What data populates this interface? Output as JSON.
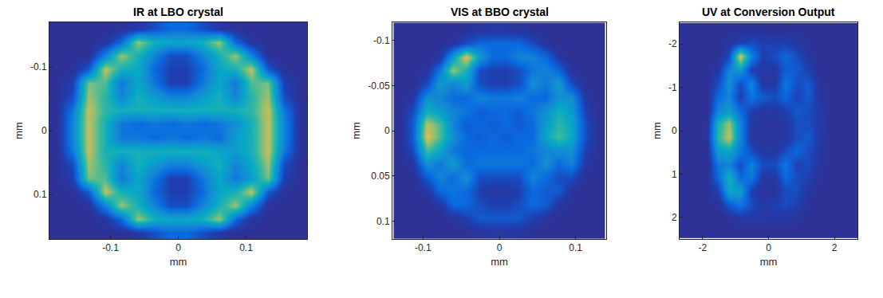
{
  "chart_data": [
    {
      "type": "heatmap",
      "title": "IR at LBO crystal",
      "xlabel": "mm",
      "ylabel": "mm",
      "x": [
        -0.18,
        -0.156,
        -0.132,
        -0.108,
        -0.084,
        -0.06,
        -0.036,
        -0.012,
        0.012,
        0.036,
        0.06,
        0.084,
        0.108,
        0.132,
        0.156,
        0.18
      ],
      "y": [
        -0.16,
        -0.139,
        -0.117,
        -0.096,
        -0.075,
        -0.053,
        -0.032,
        -0.011,
        0.011,
        0.032,
        0.053,
        0.075,
        0.096,
        0.117,
        0.139,
        0.16
      ],
      "z": [
        [
          0.05,
          0.05,
          0.05,
          0.05,
          0.06,
          0.1,
          0.2,
          0.3,
          0.3,
          0.2,
          0.1,
          0.06,
          0.05,
          0.05,
          0.05,
          0.05
        ],
        [
          0.05,
          0.05,
          0.05,
          0.08,
          0.3,
          0.8,
          0.6,
          0.55,
          0.55,
          0.6,
          0.8,
          0.3,
          0.08,
          0.05,
          0.05,
          0.05
        ],
        [
          0.05,
          0.05,
          0.06,
          0.4,
          0.8,
          0.6,
          0.4,
          0.2,
          0.2,
          0.4,
          0.6,
          0.8,
          0.4,
          0.06,
          0.05,
          0.05
        ],
        [
          0.05,
          0.06,
          0.25,
          0.85,
          0.6,
          0.55,
          0.3,
          0.15,
          0.15,
          0.3,
          0.55,
          0.6,
          0.85,
          0.25,
          0.06,
          0.05
        ],
        [
          0.05,
          0.15,
          0.75,
          0.7,
          0.35,
          0.55,
          0.35,
          0.15,
          0.15,
          0.35,
          0.55,
          0.35,
          0.7,
          0.75,
          0.15,
          0.05
        ],
        [
          0.05,
          0.2,
          0.8,
          0.65,
          0.4,
          0.6,
          0.5,
          0.4,
          0.4,
          0.5,
          0.6,
          0.4,
          0.65,
          0.8,
          0.2,
          0.05
        ],
        [
          0.06,
          0.35,
          0.85,
          0.65,
          0.6,
          0.6,
          0.6,
          0.6,
          0.6,
          0.6,
          0.6,
          0.6,
          0.65,
          0.85,
          0.35,
          0.06
        ],
        [
          0.06,
          0.4,
          0.85,
          0.6,
          0.35,
          0.3,
          0.35,
          0.3,
          0.35,
          0.3,
          0.35,
          0.45,
          0.6,
          0.85,
          0.4,
          0.06
        ],
        [
          0.06,
          0.4,
          0.85,
          0.6,
          0.35,
          0.35,
          0.3,
          0.35,
          0.3,
          0.35,
          0.3,
          0.5,
          0.6,
          0.85,
          0.4,
          0.06
        ],
        [
          0.06,
          0.35,
          0.85,
          0.6,
          0.6,
          0.6,
          0.6,
          0.6,
          0.6,
          0.6,
          0.55,
          0.5,
          0.6,
          0.85,
          0.35,
          0.06
        ],
        [
          0.05,
          0.2,
          0.8,
          0.65,
          0.4,
          0.6,
          0.5,
          0.4,
          0.4,
          0.5,
          0.6,
          0.4,
          0.55,
          0.8,
          0.2,
          0.05
        ],
        [
          0.05,
          0.15,
          0.75,
          0.7,
          0.35,
          0.55,
          0.35,
          0.15,
          0.15,
          0.35,
          0.55,
          0.35,
          0.5,
          0.75,
          0.15,
          0.05
        ],
        [
          0.05,
          0.06,
          0.25,
          0.85,
          0.6,
          0.55,
          0.3,
          0.15,
          0.15,
          0.3,
          0.55,
          0.6,
          0.85,
          0.25,
          0.06,
          0.05
        ],
        [
          0.05,
          0.05,
          0.06,
          0.4,
          0.8,
          0.6,
          0.4,
          0.2,
          0.2,
          0.4,
          0.6,
          0.8,
          0.4,
          0.06,
          0.05,
          0.05
        ],
        [
          0.05,
          0.05,
          0.05,
          0.08,
          0.3,
          0.8,
          0.6,
          0.55,
          0.55,
          0.6,
          0.8,
          0.3,
          0.08,
          0.05,
          0.05,
          0.05
        ],
        [
          0.05,
          0.05,
          0.05,
          0.05,
          0.06,
          0.1,
          0.2,
          0.3,
          0.3,
          0.2,
          0.1,
          0.06,
          0.05,
          0.05,
          0.05,
          0.05
        ]
      ],
      "zlim": [
        0,
        1
      ],
      "xlim": [
        -0.19,
        0.19
      ],
      "xticks": [
        -0.1,
        0,
        0.1
      ],
      "ylim": [
        0.17,
        -0.17
      ],
      "yticks": [
        -0.1,
        0,
        0.1
      ]
    },
    {
      "type": "heatmap",
      "title": "VIS at BBO crystal",
      "xlabel": "mm",
      "ylabel": "mm",
      "x": [
        -0.13,
        -0.113,
        -0.095,
        -0.078,
        -0.061,
        -0.043,
        -0.026,
        -0.009,
        0.009,
        0.026,
        0.043,
        0.061,
        0.078,
        0.095,
        0.113,
        0.13
      ],
      "y": [
        -0.112,
        -0.097,
        -0.082,
        -0.067,
        -0.052,
        -0.037,
        -0.022,
        -0.007,
        0.007,
        0.022,
        0.037,
        0.052,
        0.067,
        0.082,
        0.097,
        0.112
      ],
      "z": [
        [
          0.05,
          0.05,
          0.05,
          0.05,
          0.05,
          0.06,
          0.08,
          0.1,
          0.1,
          0.08,
          0.06,
          0.05,
          0.05,
          0.05,
          0.05,
          0.05
        ],
        [
          0.05,
          0.05,
          0.05,
          0.05,
          0.08,
          0.2,
          0.3,
          0.3,
          0.3,
          0.3,
          0.2,
          0.08,
          0.05,
          0.05,
          0.05,
          0.05
        ],
        [
          0.05,
          0.05,
          0.05,
          0.1,
          0.5,
          0.9,
          0.5,
          0.3,
          0.3,
          0.4,
          0.4,
          0.3,
          0.1,
          0.05,
          0.05,
          0.05
        ],
        [
          0.05,
          0.05,
          0.08,
          0.35,
          0.8,
          0.6,
          0.2,
          0.15,
          0.15,
          0.2,
          0.35,
          0.4,
          0.3,
          0.08,
          0.05,
          0.05
        ],
        [
          0.05,
          0.05,
          0.2,
          0.5,
          0.4,
          0.5,
          0.2,
          0.15,
          0.15,
          0.2,
          0.45,
          0.35,
          0.5,
          0.2,
          0.05,
          0.05
        ],
        [
          0.05,
          0.1,
          0.45,
          0.4,
          0.3,
          0.3,
          0.4,
          0.35,
          0.35,
          0.4,
          0.3,
          0.3,
          0.45,
          0.45,
          0.1,
          0.05
        ],
        [
          0.05,
          0.2,
          0.6,
          0.5,
          0.4,
          0.35,
          0.25,
          0.3,
          0.3,
          0.25,
          0.35,
          0.45,
          0.6,
          0.5,
          0.15,
          0.05
        ],
        [
          0.05,
          0.25,
          0.85,
          0.7,
          0.4,
          0.25,
          0.3,
          0.25,
          0.3,
          0.25,
          0.3,
          0.5,
          0.65,
          0.55,
          0.2,
          0.05
        ],
        [
          0.05,
          0.25,
          0.9,
          0.7,
          0.45,
          0.3,
          0.25,
          0.3,
          0.25,
          0.3,
          0.3,
          0.55,
          0.7,
          0.55,
          0.2,
          0.05
        ],
        [
          0.05,
          0.2,
          0.7,
          0.55,
          0.35,
          0.3,
          0.3,
          0.3,
          0.3,
          0.3,
          0.35,
          0.4,
          0.45,
          0.45,
          0.15,
          0.05
        ],
        [
          0.05,
          0.1,
          0.45,
          0.35,
          0.5,
          0.3,
          0.35,
          0.35,
          0.35,
          0.35,
          0.3,
          0.45,
          0.3,
          0.4,
          0.1,
          0.05
        ],
        [
          0.05,
          0.05,
          0.25,
          0.4,
          0.3,
          0.45,
          0.2,
          0.2,
          0.2,
          0.2,
          0.4,
          0.3,
          0.2,
          0.2,
          0.05,
          0.05
        ],
        [
          0.05,
          0.05,
          0.1,
          0.3,
          0.35,
          0.3,
          0.15,
          0.1,
          0.1,
          0.15,
          0.3,
          0.25,
          0.25,
          0.08,
          0.05,
          0.05
        ],
        [
          0.05,
          0.05,
          0.05,
          0.1,
          0.3,
          0.3,
          0.2,
          0.15,
          0.15,
          0.2,
          0.3,
          0.25,
          0.1,
          0.05,
          0.05,
          0.05
        ],
        [
          0.05,
          0.05,
          0.05,
          0.05,
          0.08,
          0.15,
          0.25,
          0.25,
          0.25,
          0.25,
          0.15,
          0.08,
          0.05,
          0.05,
          0.05,
          0.05
        ],
        [
          0.05,
          0.05,
          0.05,
          0.05,
          0.05,
          0.06,
          0.08,
          0.1,
          0.1,
          0.08,
          0.06,
          0.05,
          0.05,
          0.05,
          0.05,
          0.05
        ]
      ],
      "zlim": [
        0,
        1
      ],
      "xlim": [
        -0.14,
        0.14
      ],
      "xticks": [
        -0.1,
        0,
        0.1
      ],
      "ylim": [
        0.12,
        -0.12
      ],
      "yticks": [
        -0.1,
        -0.05,
        0,
        0.05,
        0.1
      ]
    },
    {
      "type": "heatmap",
      "title": "UV at Conversion Output",
      "xlabel": "mm",
      "ylabel": "mm",
      "x": [
        -2.55,
        -2.21,
        -1.87,
        -1.53,
        -1.19,
        -0.85,
        -0.51,
        -0.17,
        0.17,
        0.51,
        0.85,
        1.19,
        1.53,
        1.87,
        2.21,
        2.55
      ],
      "y": [
        -2.33,
        -2.02,
        -1.71,
        -1.4,
        -1.09,
        -0.78,
        -0.47,
        -0.16,
        0.16,
        0.47,
        0.78,
        1.09,
        1.4,
        1.71,
        2.02,
        2.33
      ],
      "z": [
        [
          0.05,
          0.05,
          0.05,
          0.05,
          0.05,
          0.05,
          0.05,
          0.05,
          0.05,
          0.05,
          0.05,
          0.05,
          0.05,
          0.05,
          0.05,
          0.05
        ],
        [
          0.05,
          0.05,
          0.05,
          0.05,
          0.08,
          0.15,
          0.2,
          0.15,
          0.15,
          0.15,
          0.1,
          0.06,
          0.05,
          0.05,
          0.05,
          0.05
        ],
        [
          0.05,
          0.05,
          0.05,
          0.05,
          0.2,
          0.9,
          0.4,
          0.15,
          0.2,
          0.3,
          0.2,
          0.1,
          0.05,
          0.05,
          0.05,
          0.05
        ],
        [
          0.05,
          0.05,
          0.05,
          0.1,
          0.4,
          0.5,
          0.15,
          0.1,
          0.1,
          0.25,
          0.25,
          0.15,
          0.05,
          0.05,
          0.05,
          0.05
        ],
        [
          0.05,
          0.05,
          0.05,
          0.2,
          0.45,
          0.2,
          0.4,
          0.1,
          0.1,
          0.35,
          0.2,
          0.25,
          0.08,
          0.05,
          0.05,
          0.05
        ],
        [
          0.05,
          0.05,
          0.05,
          0.3,
          0.4,
          0.15,
          0.35,
          0.25,
          0.2,
          0.3,
          0.15,
          0.25,
          0.1,
          0.05,
          0.05,
          0.05
        ],
        [
          0.05,
          0.05,
          0.05,
          0.4,
          0.5,
          0.3,
          0.15,
          0.1,
          0.1,
          0.15,
          0.25,
          0.2,
          0.12,
          0.05,
          0.05,
          0.05
        ],
        [
          0.05,
          0.05,
          0.06,
          0.6,
          0.8,
          0.4,
          0.1,
          0.08,
          0.08,
          0.1,
          0.2,
          0.2,
          0.12,
          0.05,
          0.05,
          0.05
        ],
        [
          0.05,
          0.05,
          0.06,
          0.65,
          0.85,
          0.4,
          0.1,
          0.08,
          0.08,
          0.1,
          0.2,
          0.25,
          0.12,
          0.05,
          0.05,
          0.05
        ],
        [
          0.05,
          0.05,
          0.05,
          0.5,
          0.55,
          0.35,
          0.2,
          0.1,
          0.1,
          0.2,
          0.3,
          0.2,
          0.1,
          0.05,
          0.05,
          0.05
        ],
        [
          0.05,
          0.05,
          0.05,
          0.35,
          0.4,
          0.2,
          0.4,
          0.2,
          0.2,
          0.35,
          0.15,
          0.2,
          0.08,
          0.05,
          0.05,
          0.05
        ],
        [
          0.05,
          0.05,
          0.05,
          0.3,
          0.6,
          0.3,
          0.35,
          0.1,
          0.1,
          0.3,
          0.2,
          0.15,
          0.06,
          0.05,
          0.05,
          0.05
        ],
        [
          0.05,
          0.05,
          0.05,
          0.15,
          0.55,
          0.5,
          0.15,
          0.08,
          0.08,
          0.2,
          0.2,
          0.1,
          0.05,
          0.05,
          0.05,
          0.05
        ],
        [
          0.05,
          0.05,
          0.05,
          0.06,
          0.25,
          0.35,
          0.2,
          0.1,
          0.15,
          0.2,
          0.15,
          0.06,
          0.05,
          0.05,
          0.05,
          0.05
        ],
        [
          0.05,
          0.05,
          0.05,
          0.05,
          0.06,
          0.1,
          0.12,
          0.1,
          0.1,
          0.1,
          0.08,
          0.05,
          0.05,
          0.05,
          0.05,
          0.05
        ],
        [
          0.05,
          0.05,
          0.05,
          0.05,
          0.05,
          0.05,
          0.05,
          0.05,
          0.05,
          0.05,
          0.05,
          0.05,
          0.05,
          0.05,
          0.05,
          0.05
        ]
      ],
      "zlim": [
        0,
        1
      ],
      "xlim": [
        -2.7,
        2.7
      ],
      "xticks": [
        -2,
        0,
        2
      ],
      "ylim": [
        2.5,
        -2.5
      ],
      "yticks": [
        -2,
        -1,
        0,
        1,
        2
      ]
    }
  ]
}
